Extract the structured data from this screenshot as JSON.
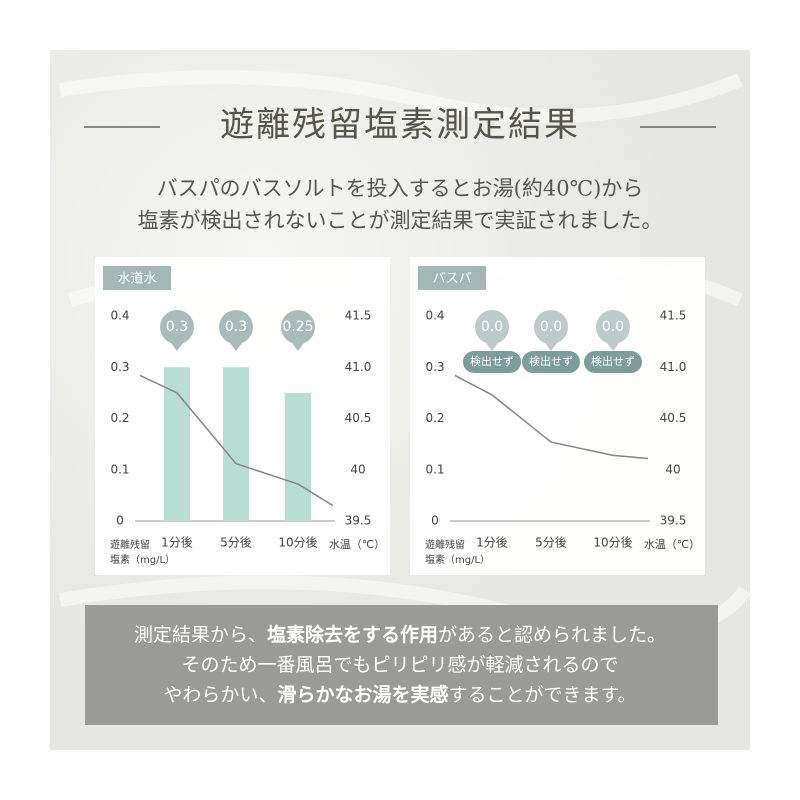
{
  "title": "遊離残留塩素測定結果",
  "intro": [
    "バスパのバスソルトを投入するとお湯(約40℃)から",
    "塩素が検出されないことが測定結果で実証されました。"
  ],
  "chart_data": [
    {
      "type": "bar",
      "title": "水道水",
      "categories": [
        null,
        "1分後",
        "5分後",
        "10分後",
        null
      ],
      "series": [
        {
          "type": "bar",
          "color": "#b8ddd3",
          "values": [
            null,
            0.3,
            0.3,
            0.25,
            null
          ],
          "value_labels": [
            null,
            "0.3",
            "0.3",
            "0.25",
            null
          ]
        },
        {
          "type": "line",
          "axis": "y2",
          "color": "#858585",
          "values": [
            40.92,
            40.75,
            40.06,
            39.86,
            39.65
          ]
        }
      ],
      "ylabel": [
        "遊離残留",
        "塩素（mg/L）"
      ],
      "y2label": "水温（℃）",
      "ylim": [
        0,
        0.4
      ],
      "yticks": [
        0,
        0.1,
        0.2,
        0.3,
        0.4
      ],
      "y2lim": [
        39.5,
        41.5
      ],
      "y2ticks": [
        39.5,
        40,
        40.5,
        {
          "value": 41,
          "label": "41.0"
        },
        41.5
      ]
    },
    {
      "type": "bar",
      "title": "バスパ",
      "categories": [
        null,
        "1分後",
        "5分後",
        "10分後",
        null
      ],
      "series": [
        {
          "type": "bar",
          "color": "#b8ddd3",
          "values": [
            null,
            0,
            0,
            0,
            null
          ],
          "value_labels": [
            null,
            "0.0",
            "0.0",
            "0.0",
            null
          ],
          "notes": [
            null,
            "検出せず",
            "検出せず",
            "検出せず",
            null
          ]
        },
        {
          "type": "line",
          "axis": "y2",
          "color": "#858585",
          "values": [
            40.92,
            40.73,
            40.27,
            40.14,
            40.11
          ]
        }
      ],
      "ylabel": [
        "遊離残留",
        "塩素（mg/L）"
      ],
      "y2label": "水温（℃）",
      "ylim": [
        0,
        0.4
      ],
      "yticks": [
        0,
        0.1,
        0.2,
        0.3,
        0.4
      ],
      "y2lim": [
        39.5,
        41.5
      ],
      "y2ticks": [
        39.5,
        40,
        40.5,
        {
          "value": 41,
          "label": "41.0"
        },
        41.5
      ]
    }
  ],
  "conclusion": [
    [
      "測定結果から、",
      "塩素除去をする作用",
      "があると認められました。"
    ],
    [
      "そのため一番風呂でもピリピリ感が軽減されるので"
    ],
    [
      "やわらかい、",
      "滑らかなお湯を実感",
      "することができます。"
    ]
  ]
}
